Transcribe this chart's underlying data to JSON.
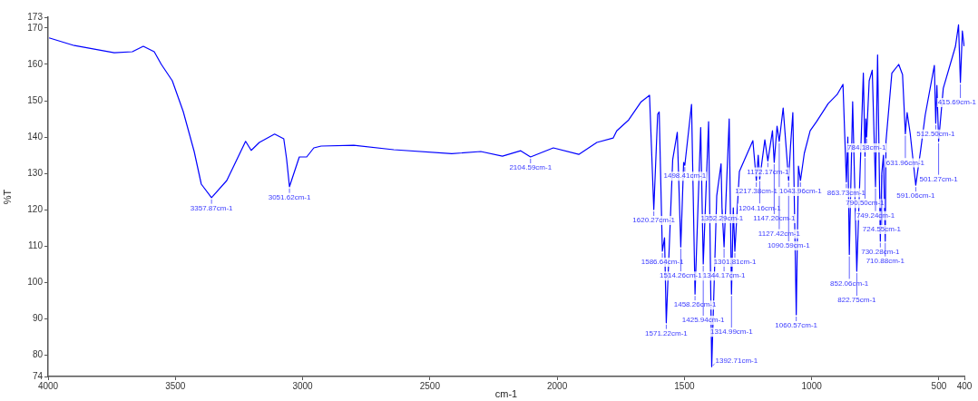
{
  "chart_data": {
    "type": "line",
    "xlabel": "cm-1",
    "ylabel": "%T",
    "xlim": [
      4000,
      400
    ],
    "ylim": [
      74,
      173
    ],
    "xticks": [
      4000,
      3500,
      3000,
      2500,
      2000,
      1500,
      1000,
      500,
      400
    ],
    "yticks": [
      74,
      80,
      90,
      100,
      110,
      120,
      130,
      140,
      150,
      160,
      170,
      173
    ],
    "grid": false,
    "legend": false,
    "marker": "none",
    "line_style": "solid",
    "series": [
      {
        "color": "#0000ff",
        "x": [
          3996,
          3897,
          3740,
          3669,
          3626,
          3583,
          3555,
          3512,
          3469,
          3426,
          3398,
          3357.87,
          3298,
          3224,
          3202,
          3170,
          3110,
          3074,
          3063,
          3051.62,
          3013,
          2984,
          2956,
          2927,
          2799,
          2642,
          2414,
          2300,
          2215,
          2143,
          2104.59,
          2015,
          1915,
          1844,
          1780,
          1766,
          1719,
          1670,
          1637,
          1620.27,
          1605,
          1599,
          1586.64,
          1578,
          1571.22,
          1546,
          1528,
          1514.26,
          1503,
          1498.41,
          1472,
          1458.26,
          1436,
          1425.94,
          1405,
          1392.71,
          1373,
          1356,
          1352.29,
          1344.17,
          1324,
          1314.99,
          1308,
          1301.81,
          1284,
          1231,
          1217.38,
          1210,
          1204.16,
          1184,
          1172.17,
          1154,
          1147.2,
          1136,
          1127.42,
          1112,
          1090.59,
          1083,
          1074,
          1060.57,
          1052,
          1043.96,
          1029,
          1006,
          981,
          935,
          900,
          877,
          863.73,
          858,
          852.06,
          839,
          822.75,
          797,
          790.5,
          787,
          784.18,
          774,
          762,
          749.24,
          741,
          730.28,
          724.55,
          718,
          710.88,
          708,
          685,
          658,
          643,
          631.96,
          625,
          613,
          591.06,
          572,
          554,
          518,
          512.5,
          508,
          501.27,
          483,
          435,
          423,
          415.69,
          408,
          401
        ],
        "values": [
          167.3,
          165.2,
          163.2,
          163.5,
          165,
          163.5,
          160,
          155.5,
          147,
          136,
          127,
          123.3,
          128,
          138.8,
          136.3,
          138.5,
          140.8,
          139.5,
          134,
          126.3,
          134.5,
          134.5,
          137,
          137.5,
          137.7,
          136.5,
          135.4,
          136,
          134.7,
          136.2,
          134.5,
          137,
          135.2,
          138.5,
          139.7,
          141.7,
          144.7,
          149.7,
          151.5,
          120,
          146.3,
          146.9,
          108.5,
          112.2,
          88.8,
          133.8,
          141.3,
          109.7,
          133,
          132.2,
          149,
          96.7,
          142.6,
          105,
          144.2,
          76.7,
          123.8,
          132.6,
          120.5,
          109.7,
          145,
          96.7,
          120.5,
          108.5,
          130.5,
          139,
          128,
          135,
          128.4,
          139.2,
          133.4,
          141.7,
          133,
          143,
          138.8,
          148,
          128,
          137.6,
          146.7,
          91,
          132,
          128,
          135.5,
          141.7,
          144.2,
          149.2,
          151.7,
          154.5,
          127.6,
          140,
          107.6,
          149.7,
          103,
          157.6,
          134.7,
          145,
          140,
          155.5,
          158.4,
          126.3,
          162.6,
          111.3,
          130,
          135,
          111.3,
          138.8,
          157.6,
          160,
          157.2,
          140.9,
          146.7,
          141,
          126.7,
          136.3,
          146,
          159.7,
          143.8,
          154.2,
          138.8,
          153.4,
          165,
          170.9,
          155,
          169.2,
          165
        ]
      }
    ],
    "annotations": [
      {
        "text": "3357.87cm-1",
        "x": 3357.87,
        "y": 123.3
      },
      {
        "text": "3051.62cm-1",
        "x": 3051.62,
        "y": 126.3
      },
      {
        "text": "2104.59cm-1",
        "x": 2104.59,
        "y": 134.5
      },
      {
        "text": "1620.27cm-1",
        "x": 1620.27,
        "y": 120
      },
      {
        "text": "1586.64cm-1",
        "x": 1586.64,
        "y": 108.5
      },
      {
        "text": "1571.22cm-1",
        "x": 1571.22,
        "y": 88.8
      },
      {
        "text": "1514.26cm-1",
        "x": 1514.26,
        "y": 109.7
      },
      {
        "text": "1498.41cm-1",
        "x": 1498.41,
        "y": 132.2
      },
      {
        "text": "1458.26cm-1",
        "x": 1458.26,
        "y": 96.7
      },
      {
        "text": "1425.94cm-1",
        "x": 1425.94,
        "y": 105
      },
      {
        "text": "1392.71cm-1",
        "x": 1392.71,
        "y": 76.7
      },
      {
        "text": "1352.29cm-1",
        "x": 1352.29,
        "y": 120.5
      },
      {
        "text": "1344.17cm-1",
        "x": 1344.17,
        "y": 109.7
      },
      {
        "text": "1314.99cm-1",
        "x": 1314.99,
        "y": 96.7
      },
      {
        "text": "1301.81cm-1",
        "x": 1301.81,
        "y": 108.5
      },
      {
        "text": "1217.38cm-1",
        "x": 1217.38,
        "y": 128
      },
      {
        "text": "1204.16cm-1",
        "x": 1204.16,
        "y": 128.4
      },
      {
        "text": "1172.17cm-1",
        "x": 1172.17,
        "y": 133.4
      },
      {
        "text": "1147.20cm-1",
        "x": 1147.2,
        "y": 133
      },
      {
        "text": "1127.42cm-1",
        "x": 1127.42,
        "y": 138.8
      },
      {
        "text": "1090.59cm-1",
        "x": 1090.59,
        "y": 128
      },
      {
        "text": "1060.57cm-1",
        "x": 1060.57,
        "y": 91
      },
      {
        "text": "1043.96cm-1",
        "x": 1043.96,
        "y": 128
      },
      {
        "text": "863.73cm-1",
        "x": 863.73,
        "y": 127.6
      },
      {
        "text": "852.06cm-1",
        "x": 852.06,
        "y": 107.6
      },
      {
        "text": "822.75cm-1",
        "x": 822.75,
        "y": 103
      },
      {
        "text": "790.50cm-1",
        "x": 790.5,
        "y": 134.7
      },
      {
        "text": "784.18cm-1",
        "x": 784.18,
        "y": 140
      },
      {
        "text": "749.24cm-1",
        "x": 749.24,
        "y": 126.3
      },
      {
        "text": "730.28cm-1",
        "x": 730.28,
        "y": 111.3
      },
      {
        "text": "724.55cm-1",
        "x": 724.55,
        "y": 130
      },
      {
        "text": "710.88cm-1",
        "x": 710.88,
        "y": 111.3
      },
      {
        "text": "631.96cm-1",
        "x": 631.96,
        "y": 140.9
      },
      {
        "text": "591.06cm-1",
        "x": 591.06,
        "y": 126.7
      },
      {
        "text": "512.50cm-1",
        "x": 512.5,
        "y": 143.8
      },
      {
        "text": "501.27cm-1",
        "x": 501.27,
        "y": 138.8
      },
      {
        "text": "415.69cm-1",
        "x": 415.69,
        "y": 155
      }
    ]
  }
}
